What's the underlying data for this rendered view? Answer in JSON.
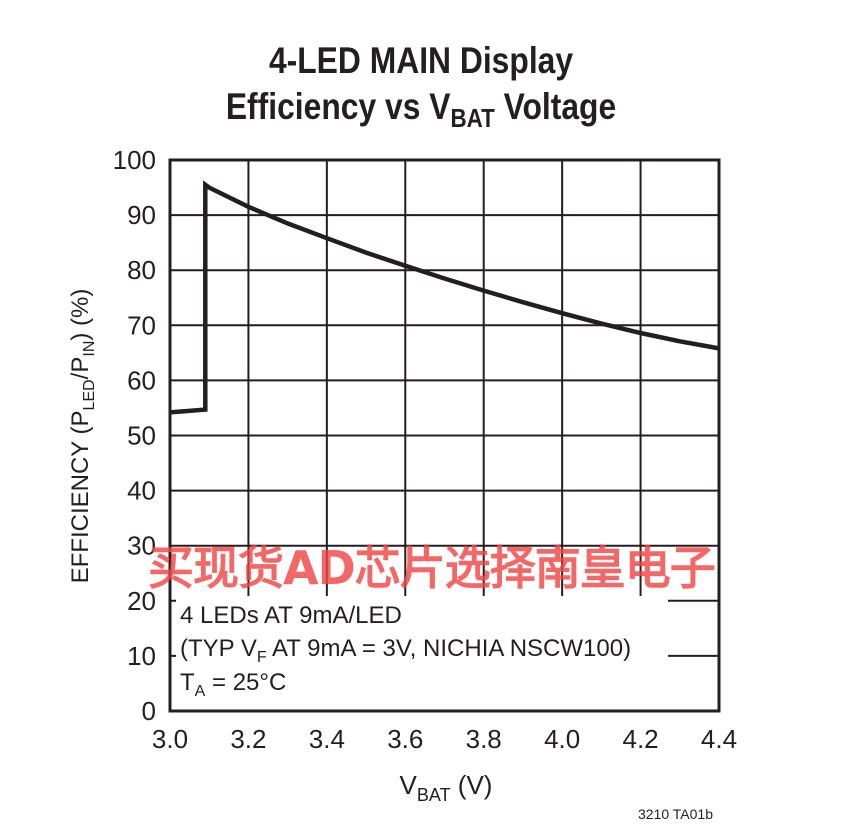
{
  "chart_data": {
    "type": "line",
    "title_line1": "4-LED MAIN Display",
    "title_line2_pre": "Efficiency vs V",
    "title_line2_sub": "BAT",
    "title_line2_post": " Voltage",
    "xlabel_main": "V",
    "xlabel_sub": "BAT",
    "xlabel_unit": " (V)",
    "ylabel": "EFFICIENCY (P_LED/P_IN) (%)",
    "ylabel_parts": {
      "a": "EFFICIENCY (P",
      "b": "LED",
      "c": "/P",
      "d": "IN",
      "e": ") (%)"
    },
    "xlim": [
      3.0,
      4.4
    ],
    "ylim": [
      0,
      100
    ],
    "grid": true,
    "x_ticks": [
      "3.0",
      "3.2",
      "3.4",
      "3.6",
      "3.8",
      "4.0",
      "4.2",
      "4.4"
    ],
    "y_ticks": [
      "0",
      "10",
      "20",
      "30",
      "40",
      "50",
      "60",
      "70",
      "80",
      "90",
      "100"
    ],
    "series": [
      {
        "color": "#231f20",
        "x": [
          3.0,
          3.09,
          3.09,
          3.1,
          3.2,
          3.3,
          3.4,
          3.5,
          3.6,
          3.7,
          3.8,
          3.9,
          4.0,
          4.1,
          4.2,
          4.3,
          4.4
        ],
        "y": [
          54.2,
          54.7,
          95.5,
          95.0,
          91.5,
          88.5,
          85.8,
          83.2,
          80.8,
          78.5,
          76.3,
          74.2,
          72.2,
          70.3,
          68.6,
          67.1,
          65.8
        ]
      }
    ],
    "annotation": {
      "line1": "4 LEDs AT 9mA/LED",
      "line2_pre": "(TYP V",
      "line2_sub": "F",
      "line2_post": " AT 9mA = 3V, NICHIA NSCW100)",
      "line3_pre": "T",
      "line3_sub": "A",
      "line3_post": " = 25°C"
    },
    "figure_code": "3210 TA01b"
  },
  "watermark": "买现货AD芯片选择南皇电子"
}
